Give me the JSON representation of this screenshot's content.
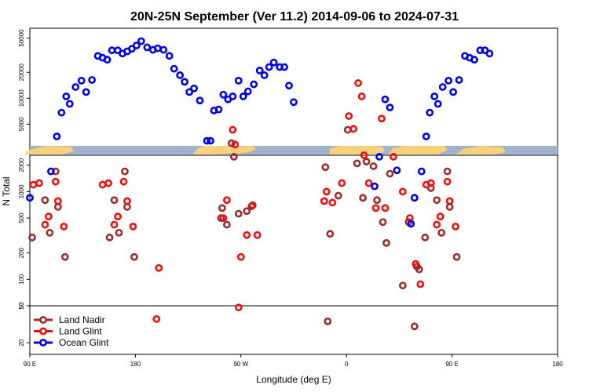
{
  "chart_data": {
    "type": "scatter",
    "title": "20N-25N September (Ver 11.2)   2014-09-06 to 2024-07-31",
    "xlabel": "Longitude (deg E)",
    "ylabel": "N Total",
    "x_ticks": [
      {
        "value": 90,
        "label": "90 E"
      },
      {
        "value": 180,
        "label": "180"
      },
      {
        "value": 270,
        "label": "90 W"
      },
      {
        "value": 360,
        "label": "0"
      },
      {
        "value": 450,
        "label": "90 E"
      },
      {
        "value": 540,
        "label": "180"
      }
    ],
    "xlim": [
      90,
      540
    ],
    "y_scale": "log",
    "panels": {
      "ocean": {
        "ylim": [
          2800,
          65000
        ],
        "ticks": [
          5000,
          10000,
          20000,
          50000
        ]
      },
      "land": {
        "ylim": [
          50,
          2600
        ],
        "ticks": [
          50,
          100,
          200,
          500,
          1000,
          2000
        ]
      },
      "low": {
        "ylim": [
          15,
          50
        ],
        "ticks": [
          20,
          50
        ]
      }
    },
    "legend": {
      "position": "bottom-left"
    },
    "series": [
      {
        "name": "Land Nadir",
        "color": "#9b2d2d",
        "points": [
          [
            92,
            300
          ],
          [
            103,
            800
          ],
          [
            107,
            340
          ],
          [
            112,
            1700
          ],
          [
            114,
            670
          ],
          [
            120,
            180
          ],
          [
            158,
            300
          ],
          [
            162,
            800
          ],
          [
            166,
            340
          ],
          [
            171,
            1700
          ],
          [
            173,
            670
          ],
          [
            179,
            180
          ],
          [
            254,
            650
          ],
          [
            258,
            420
          ],
          [
            253,
            500
          ],
          [
            262,
            3000
          ],
          [
            264,
            2500
          ],
          [
            268,
            560
          ],
          [
            275,
            600
          ],
          [
            279,
            680
          ],
          [
            342,
            1900
          ],
          [
            346,
            330
          ],
          [
            344,
            34
          ],
          [
            353,
            900
          ],
          [
            361,
            4300
          ],
          [
            369,
            2100
          ],
          [
            374,
            850
          ],
          [
            377,
            2200
          ],
          [
            383,
            1950
          ],
          [
            386,
            800
          ],
          [
            391,
            450
          ],
          [
            394,
            260
          ],
          [
            397,
            1600
          ],
          [
            408,
            85
          ],
          [
            413,
            450
          ],
          [
            418,
            30
          ],
          [
            420,
            140
          ],
          [
            422,
            130
          ],
          [
            427,
            300
          ],
          [
            432,
            1100
          ],
          [
            437,
            800
          ],
          [
            441,
            340
          ],
          [
            446,
            1700
          ],
          [
            448,
            670
          ],
          [
            454,
            180
          ]
        ]
      },
      {
        "name": "Land Glint",
        "color": "#ee1010",
        "points": [
          [
            93,
            1200
          ],
          [
            98,
            1250
          ],
          [
            103,
            420
          ],
          [
            106,
            520
          ],
          [
            112,
            1300
          ],
          [
            114,
            780
          ],
          [
            119,
            400
          ],
          [
            152,
            1200
          ],
          [
            157,
            1250
          ],
          [
            162,
            420
          ],
          [
            165,
            520
          ],
          [
            170,
            1300
          ],
          [
            173,
            780
          ],
          [
            178,
            400
          ],
          [
            198,
            36
          ],
          [
            200,
            135
          ],
          [
            255,
            500
          ],
          [
            258,
            800
          ],
          [
            265,
            2900
          ],
          [
            263,
            4300
          ],
          [
            268,
            48
          ],
          [
            270,
            180
          ],
          [
            275,
            320
          ],
          [
            280,
            700
          ],
          [
            284,
            320
          ],
          [
            341,
            780
          ],
          [
            343,
            1000
          ],
          [
            348,
            750
          ],
          [
            356,
            1250
          ],
          [
            362,
            6200
          ],
          [
            366,
            4400
          ],
          [
            370,
            15000
          ],
          [
            373,
            10500
          ],
          [
            375,
            2600
          ],
          [
            379,
            1250
          ],
          [
            385,
            650
          ],
          [
            390,
            5800
          ],
          [
            393,
            650
          ],
          [
            400,
            2500
          ],
          [
            408,
            1000
          ],
          [
            414,
            500
          ],
          [
            419,
            150
          ],
          [
            423,
            88
          ],
          [
            428,
            1200
          ],
          [
            432,
            1250
          ],
          [
            437,
            420
          ],
          [
            440,
            520
          ],
          [
            446,
            1300
          ],
          [
            448,
            780
          ],
          [
            453,
            400
          ]
        ]
      },
      {
        "name": "Ocean Glint",
        "color": "#0000ee",
        "points": [
          [
            90,
            850
          ],
          [
            108,
            1700
          ],
          [
            113,
            3600
          ],
          [
            117,
            6800
          ],
          [
            121,
            10500
          ],
          [
            124,
            8600
          ],
          [
            129,
            13500
          ],
          [
            134,
            16000
          ],
          [
            138,
            11800
          ],
          [
            143,
            16300
          ],
          [
            148,
            31000
          ],
          [
            152,
            29500
          ],
          [
            156,
            28000
          ],
          [
            160,
            36000
          ],
          [
            165,
            36000
          ],
          [
            169,
            33000
          ],
          [
            173,
            35000
          ],
          [
            177,
            37500
          ],
          [
            181,
            41000
          ],
          [
            185,
            46000
          ],
          [
            190,
            39000
          ],
          [
            195,
            36500
          ],
          [
            199,
            38000
          ],
          [
            204,
            36500
          ],
          [
            209,
            31000
          ],
          [
            213,
            22000
          ],
          [
            218,
            18500
          ],
          [
            222,
            15500
          ],
          [
            226,
            11800
          ],
          [
            230,
            13000
          ],
          [
            235,
            9400
          ],
          [
            241,
            3200
          ],
          [
            244,
            3200
          ],
          [
            247,
            7200
          ],
          [
            251,
            7400
          ],
          [
            255,
            11000
          ],
          [
            259,
            9700
          ],
          [
            263,
            10500
          ],
          [
            268,
            16000
          ],
          [
            272,
            10500
          ],
          [
            276,
            12000
          ],
          [
            281,
            14500
          ],
          [
            286,
            21000
          ],
          [
            290,
            18500
          ],
          [
            294,
            23000
          ],
          [
            298,
            26000
          ],
          [
            303,
            23000
          ],
          [
            307,
            23000
          ],
          [
            311,
            14000
          ],
          [
            315,
            9000
          ],
          [
            384,
            1150
          ],
          [
            388,
            2500
          ],
          [
            393,
            9700
          ],
          [
            397,
            7800
          ],
          [
            403,
            1750
          ],
          [
            415,
            430
          ],
          [
            418,
            850
          ],
          [
            424,
            1700
          ],
          [
            428,
            3600
          ],
          [
            431,
            6800
          ],
          [
            435,
            10500
          ],
          [
            438,
            8600
          ],
          [
            442,
            13500
          ],
          [
            447,
            16000
          ],
          [
            451,
            11800
          ],
          [
            456,
            16300
          ],
          [
            461,
            31000
          ],
          [
            465,
            29500
          ],
          [
            469,
            28000
          ],
          [
            474,
            36000
          ],
          [
            478,
            36000
          ],
          [
            482,
            33000
          ]
        ]
      }
    ]
  }
}
